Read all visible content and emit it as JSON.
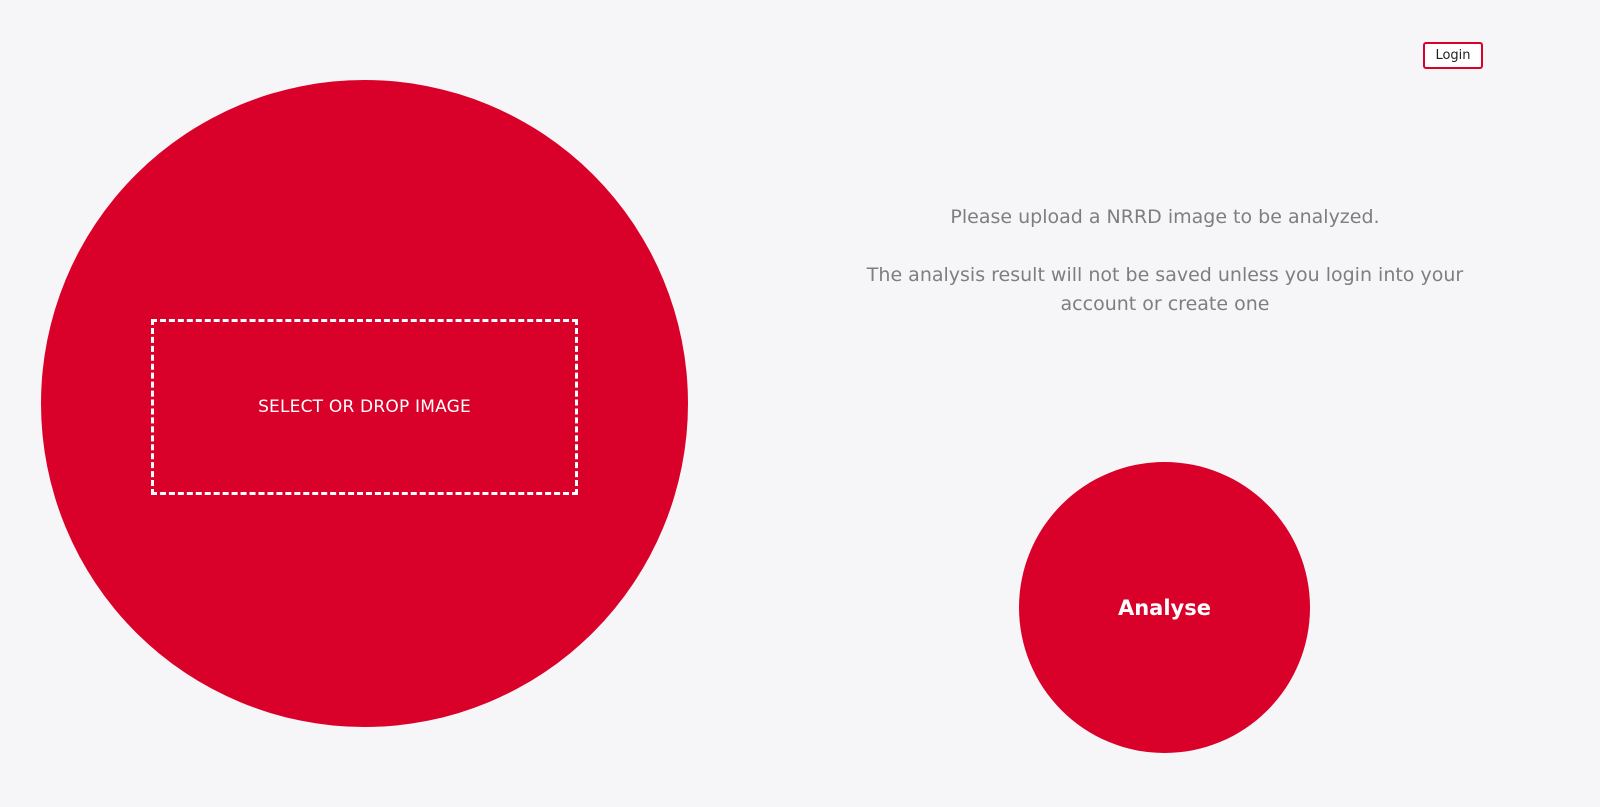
{
  "header": {
    "login_label": "Login"
  },
  "upload": {
    "drop_label": "SELECT OR DROP IMAGE"
  },
  "info": {
    "line1": "Please upload a NRRD image to be analyzed.",
    "line2": "The analysis result will not be saved unless you login into your account or create one"
  },
  "actions": {
    "analyse_label": "Analyse"
  },
  "colors": {
    "accent": "#d9002a",
    "background": "#f6f6f8",
    "muted_text": "#7e7e7e"
  }
}
